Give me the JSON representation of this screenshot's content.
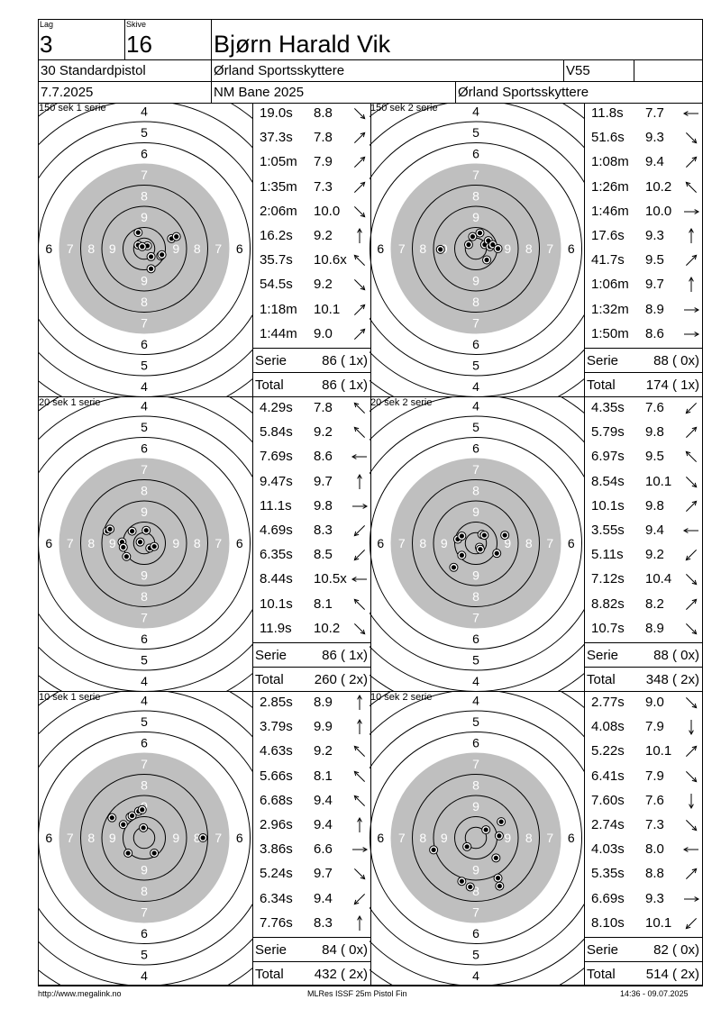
{
  "header": {
    "lag_label": "Lag",
    "lag_value": "3",
    "skive_label": "Skive",
    "skive_value": "16",
    "shooter_name": "Bjørn Harald Vik",
    "class": "30 Standardpistol",
    "club": "Ørland Sportsskyttere",
    "age_class": "V55",
    "date": "7.7.2025",
    "event": "NM Bane 2025",
    "club2": "Ørland Sportsskyttere"
  },
  "series_label": "Serie",
  "total_label": "Total",
  "panels": [
    {
      "title": "150 sek 1 serie",
      "shots": [
        {
          "time": "19.0s",
          "score": "8.8",
          "arrow": "dr"
        },
        {
          "time": "37.3s",
          "score": "7.8",
          "arrow": "ur"
        },
        {
          "time": "1:05m",
          "score": "7.9",
          "arrow": "ur"
        },
        {
          "time": "1:35m",
          "score": "7.3",
          "arrow": "ur"
        },
        {
          "time": "2:06m",
          "score": "10.0",
          "arrow": "dr"
        },
        {
          "time": "16.2s",
          "score": "9.2",
          "arrow": "u"
        },
        {
          "time": "35.7s",
          "score": "10.6x",
          "arrow": "ul"
        },
        {
          "time": "54.5s",
          "score": "9.2",
          "arrow": "dr"
        },
        {
          "time": "1:18m",
          "score": "10.1",
          "arrow": "ur"
        },
        {
          "time": "1:44m",
          "score": "9.0",
          "arrow": "ur"
        }
      ],
      "serie": "86 ( 1x)",
      "total": "86 ( 1x)",
      "hits": [
        [
          -0.15,
          -0.4
        ],
        [
          -0.15,
          -0.09
        ],
        [
          0.08,
          -0.07
        ],
        [
          0.17,
          0.2
        ],
        [
          0.41,
          0.18
        ],
        [
          0.44,
          0.15
        ],
        [
          0.68,
          -0.25
        ],
        [
          0.8,
          -0.3
        ],
        [
          0.17,
          0.5
        ],
        [
          -0.05,
          -0.05
        ]
      ]
    },
    {
      "title": "150 sek 2 serie",
      "shots": [
        {
          "time": "11.8s",
          "score": "7.7",
          "arrow": "l"
        },
        {
          "time": "51.6s",
          "score": "9.3",
          "arrow": "dr"
        },
        {
          "time": "1:08m",
          "score": "9.4",
          "arrow": "ur"
        },
        {
          "time": "1:26m",
          "score": "10.2",
          "arrow": "ul"
        },
        {
          "time": "1:46m",
          "score": "10.0",
          "arrow": "r"
        },
        {
          "time": "17.6s",
          "score": "9.3",
          "arrow": "u"
        },
        {
          "time": "41.7s",
          "score": "9.5",
          "arrow": "ur"
        },
        {
          "time": "1:06m",
          "score": "9.7",
          "arrow": "u"
        },
        {
          "time": "1:32m",
          "score": "8.9",
          "arrow": "r"
        },
        {
          "time": "1:50m",
          "score": "8.6",
          "arrow": "r"
        }
      ],
      "serie": "88 ( 0x)",
      "total": "174 ( 1x)",
      "hits": [
        [
          -0.88,
          0.02
        ],
        [
          -0.08,
          -0.3
        ],
        [
          0.1,
          -0.39
        ],
        [
          -0.18,
          -0.1
        ],
        [
          0.22,
          -0.1
        ],
        [
          0.31,
          -0.2
        ],
        [
          0.35,
          -0.05
        ],
        [
          0.42,
          -0.1
        ],
        [
          0.55,
          0.0
        ],
        [
          0.27,
          0.28
        ]
      ]
    },
    {
      "title": "20 sek 1 serie",
      "shots": [
        {
          "time": "4.29s",
          "score": "7.8",
          "arrow": "ul"
        },
        {
          "time": "5.84s",
          "score": "9.2",
          "arrow": "ul"
        },
        {
          "time": "7.69s",
          "score": "8.6",
          "arrow": "l"
        },
        {
          "time": "9.47s",
          "score": "9.7",
          "arrow": "u"
        },
        {
          "time": "11.1s",
          "score": "9.8",
          "arrow": "r"
        },
        {
          "time": "4.69s",
          "score": "8.3",
          "arrow": "dl"
        },
        {
          "time": "6.35s",
          "score": "8.5",
          "arrow": "dl"
        },
        {
          "time": "8.44s",
          "score": "10.5x",
          "arrow": "l"
        },
        {
          "time": "10.1s",
          "score": "8.1",
          "arrow": "ul"
        },
        {
          "time": "11.9s",
          "score": "10.2",
          "arrow": "dr"
        }
      ],
      "serie": "86 ( 1x)",
      "total": "260 ( 2x)",
      "hits": [
        [
          -0.92,
          -0.3
        ],
        [
          -0.85,
          -0.35
        ],
        [
          -0.55,
          -0.03
        ],
        [
          -0.52,
          0.1
        ],
        [
          -0.44,
          0.33
        ],
        [
          -0.3,
          -0.3
        ],
        [
          0.05,
          -0.32
        ],
        [
          -0.1,
          -0.03
        ],
        [
          0.14,
          0.12
        ],
        [
          0.25,
          0.08
        ]
      ]
    },
    {
      "title": "20 sek 2 serie",
      "shots": [
        {
          "time": "4.35s",
          "score": "7.6",
          "arrow": "dl"
        },
        {
          "time": "5.79s",
          "score": "9.8",
          "arrow": "ur"
        },
        {
          "time": "6.97s",
          "score": "9.5",
          "arrow": "ul"
        },
        {
          "time": "8.54s",
          "score": "10.1",
          "arrow": "dr"
        },
        {
          "time": "10.1s",
          "score": "9.8",
          "arrow": "ur"
        },
        {
          "time": "3.55s",
          "score": "9.4",
          "arrow": "l"
        },
        {
          "time": "5.11s",
          "score": "9.2",
          "arrow": "dl"
        },
        {
          "time": "7.12s",
          "score": "10.4",
          "arrow": "dr"
        },
        {
          "time": "8.82s",
          "score": "8.2",
          "arrow": "ur"
        },
        {
          "time": "10.7s",
          "score": "8.9",
          "arrow": "dr"
        }
      ],
      "serie": "88 ( 0x)",
      "total": "348 ( 2x)",
      "hits": [
        [
          -0.55,
          0.6
        ],
        [
          -0.35,
          0.3
        ],
        [
          -0.45,
          -0.1
        ],
        [
          -0.35,
          -0.18
        ],
        [
          0.15,
          -0.22
        ],
        [
          0.21,
          -0.2
        ],
        [
          0.09,
          0.1
        ],
        [
          0.11,
          0.15
        ],
        [
          0.52,
          0.25
        ],
        [
          0.72,
          -0.2
        ]
      ]
    },
    {
      "title": "10 sek 1 serie",
      "shots": [
        {
          "time": "2.85s",
          "score": "8.9",
          "arrow": "u"
        },
        {
          "time": "3.79s",
          "score": "9.9",
          "arrow": "u"
        },
        {
          "time": "4.63s",
          "score": "9.2",
          "arrow": "ul"
        },
        {
          "time": "5.66s",
          "score": "8.1",
          "arrow": "ul"
        },
        {
          "time": "6.68s",
          "score": "9.4",
          "arrow": "ul"
        },
        {
          "time": "2.96s",
          "score": "9.4",
          "arrow": "u"
        },
        {
          "time": "3.86s",
          "score": "6.6",
          "arrow": "r"
        },
        {
          "time": "5.24s",
          "score": "9.7",
          "arrow": "dr"
        },
        {
          "time": "6.34s",
          "score": "9.4",
          "arrow": "dl"
        },
        {
          "time": "7.76s",
          "score": "8.3",
          "arrow": "u"
        }
      ],
      "serie": "84 ( 0x)",
      "total": "432 ( 2x)",
      "hits": [
        [
          -0.8,
          -0.5
        ],
        [
          -0.52,
          -0.33
        ],
        [
          -0.35,
          -0.52
        ],
        [
          -0.3,
          -0.55
        ],
        [
          -0.14,
          -0.66
        ],
        [
          -0.05,
          -0.7
        ],
        [
          -0.02,
          -0.25
        ],
        [
          -0.4,
          0.38
        ],
        [
          0.25,
          0.38
        ],
        [
          1.46,
          0.0
        ]
      ]
    },
    {
      "title": "10 sek 2 serie",
      "shots": [
        {
          "time": "2.77s",
          "score": "9.0",
          "arrow": "dr"
        },
        {
          "time": "4.08s",
          "score": "7.9",
          "arrow": "d"
        },
        {
          "time": "5.22s",
          "score": "10.1",
          "arrow": "ur"
        },
        {
          "time": "6.41s",
          "score": "7.9",
          "arrow": "dr"
        },
        {
          "time": "7.60s",
          "score": "7.6",
          "arrow": "d"
        },
        {
          "time": "2.74s",
          "score": "7.3",
          "arrow": "dr"
        },
        {
          "time": "4.03s",
          "score": "8.0",
          "arrow": "l"
        },
        {
          "time": "5.35s",
          "score": "8.8",
          "arrow": "ur"
        },
        {
          "time": "6.69s",
          "score": "9.3",
          "arrow": "r"
        },
        {
          "time": "8.10s",
          "score": "10.1",
          "arrow": "dl"
        }
      ],
      "serie": "82 ( 0x)",
      "total": "514 ( 2x)",
      "hits": [
        [
          -1.05,
          0.3
        ],
        [
          -0.22,
          0.22
        ],
        [
          0.25,
          -0.2
        ],
        [
          0.58,
          -0.05
        ],
        [
          0.63,
          -0.4
        ],
        [
          0.5,
          0.5
        ],
        [
          0.55,
          1.0
        ],
        [
          0.59,
          1.2
        ],
        [
          -0.35,
          1.08
        ],
        [
          -0.14,
          1.22
        ]
      ]
    }
  ],
  "footer": {
    "url": "http://www.megalink.no",
    "software": "MLRes ISSF 25m Pistol Fin",
    "timestamp": "14:36 - 09.07.2025"
  }
}
